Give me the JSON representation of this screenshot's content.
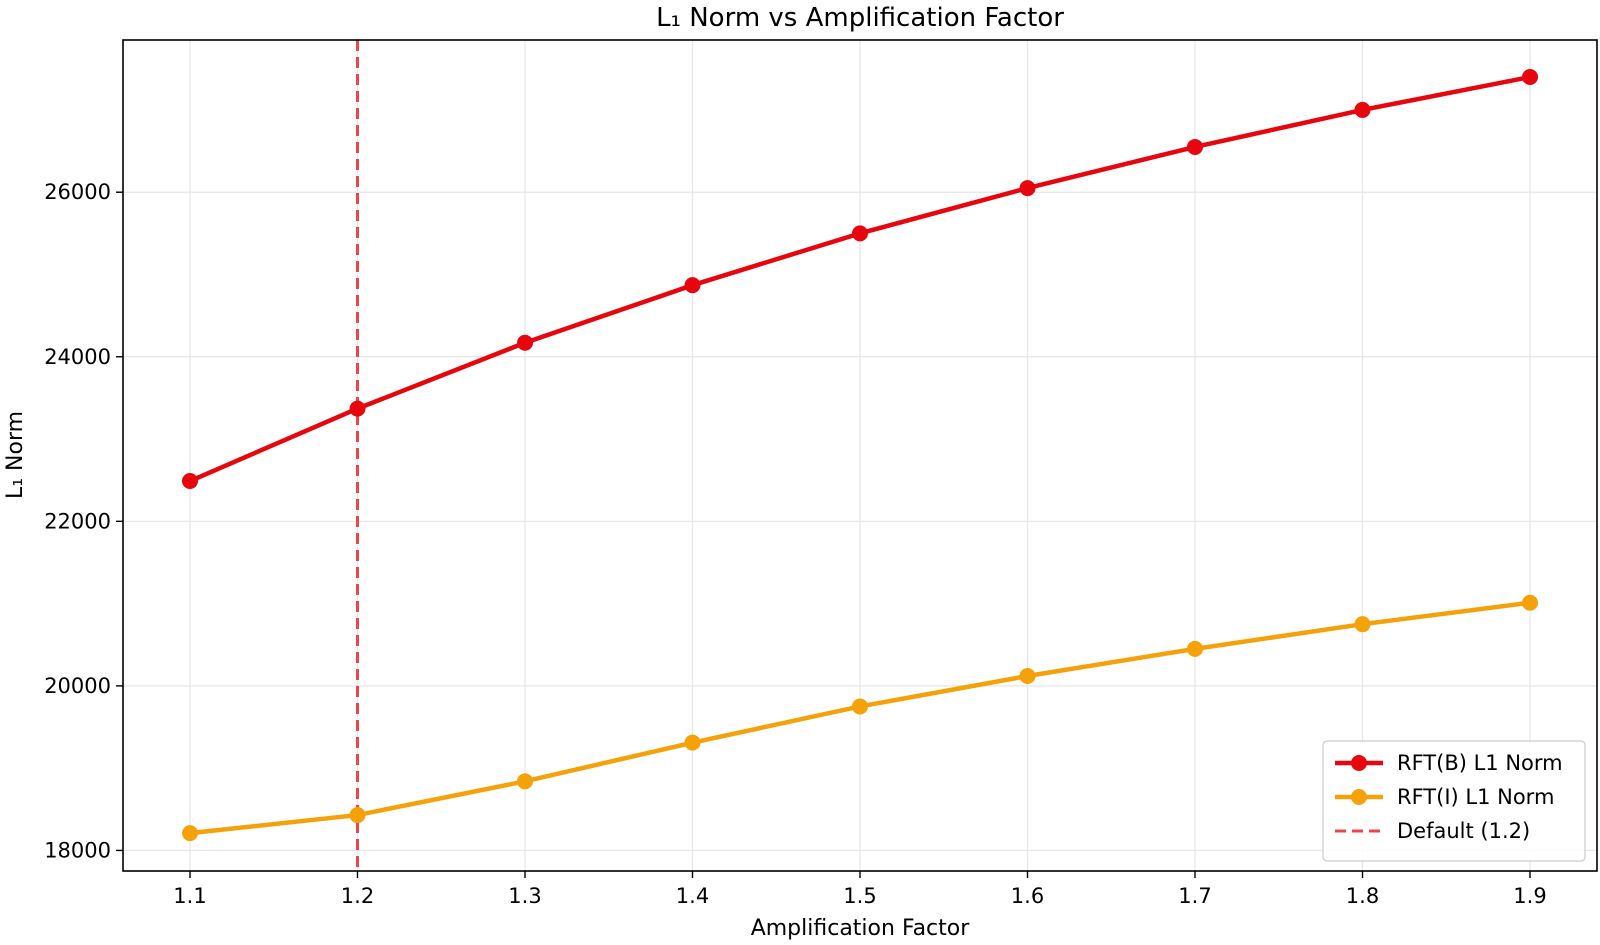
{
  "chart_data": {
    "type": "line",
    "title": "L₁ Norm vs Amplification Factor",
    "xlabel": "Amplification Factor",
    "ylabel": "L₁ Norm",
    "x": [
      1.1,
      1.2,
      1.3,
      1.4,
      1.5,
      1.6,
      1.7,
      1.8,
      1.9
    ],
    "x_tick_labels": [
      "1.1",
      "1.2",
      "1.3",
      "1.4",
      "1.5",
      "1.6",
      "1.7",
      "1.8",
      "1.9"
    ],
    "y_ticks": [
      18000,
      20000,
      22000,
      24000,
      26000
    ],
    "y_tick_labels": [
      "18000",
      "20000",
      "22000",
      "24000",
      "26000"
    ],
    "xlim": [
      1.06,
      1.94
    ],
    "ylim": [
      17750,
      27850
    ],
    "grid": true,
    "legend_position": "lower-right",
    "series": [
      {
        "name": "RFT(B) L1 Norm",
        "color": "#e8060e",
        "marker": "circle",
        "values": [
          22490,
          23370,
          24170,
          24870,
          25500,
          26050,
          26550,
          27000,
          27400
        ]
      },
      {
        "name": "RFT(I) L1 Norm",
        "color": "#f5a20a",
        "marker": "circle",
        "values": [
          18210,
          18430,
          18840,
          19310,
          19750,
          20120,
          20450,
          20750,
          21010
        ]
      }
    ],
    "reference_lines": [
      {
        "name": "Default (1.2)",
        "orientation": "vertical",
        "x": 1.2,
        "color": "#e8484a",
        "style": "dashed"
      }
    ]
  }
}
